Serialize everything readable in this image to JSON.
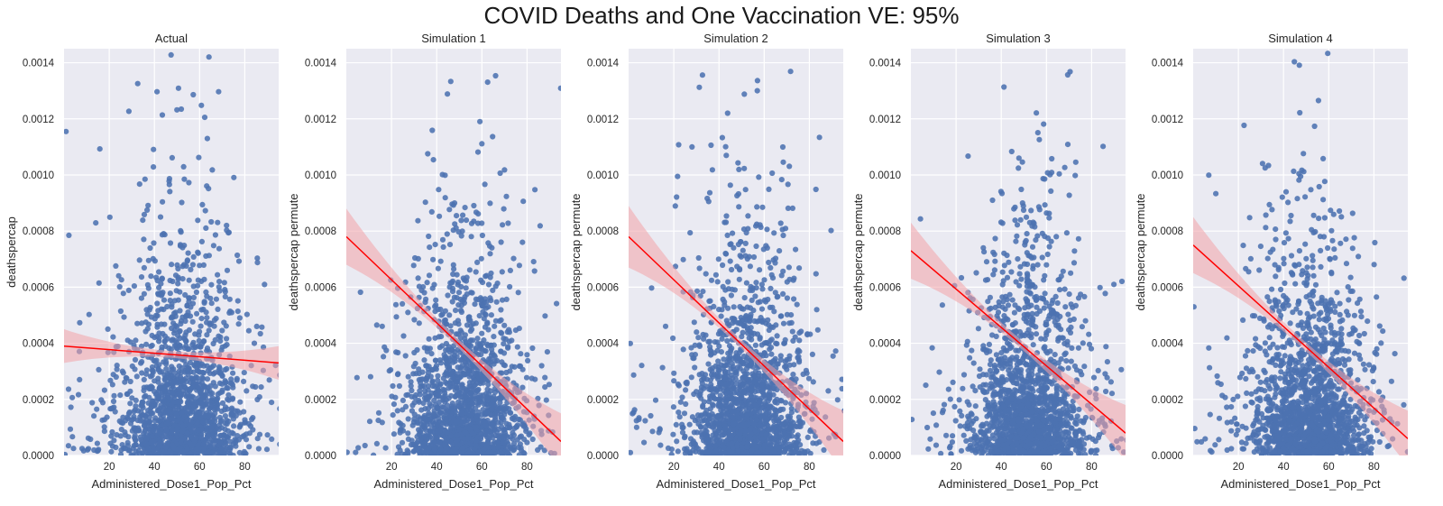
{
  "figure": {
    "title": "COVID Deaths and One Vaccination VE: 95%"
  },
  "colors": {
    "panel_bg": "#eaeaf2",
    "grid": "#ffffff",
    "points": "#4c72b0",
    "fit_line": "#ff0000",
    "ci_band": "#f2a3a8",
    "text": "#262626"
  },
  "chart_data": [
    {
      "type": "scatter",
      "title": "Actual",
      "xlabel": "Administered_Dose1_Pop_Pct",
      "ylabel": "deathspercap",
      "xlim": [
        0,
        95
      ],
      "ylim": [
        0.0,
        0.00145
      ],
      "xticks": [
        "20",
        "40",
        "60",
        "80"
      ],
      "yticks": [
        "0.0000",
        "0.0002",
        "0.0004",
        "0.0006",
        "0.0008",
        "0.0010",
        "0.0012",
        "0.0014"
      ],
      "point_cloud": {
        "n": 1700,
        "x_center": 52,
        "x_spread": 13,
        "y_scale": 0.00026,
        "y_cap": 0.0016,
        "outlier_frac": 0.06,
        "seed": 11
      },
      "regression": {
        "x0": 0,
        "y0": 0.00039,
        "x1": 95,
        "y1": 0.00033,
        "ci_half_width_ends": 6e-05,
        "ci_half_width_mid": 1.2e-05
      }
    },
    {
      "type": "scatter",
      "title": "Simulation 1",
      "xlabel": "Administered_Dose1_Pop_Pct",
      "ylabel": "deathspercap permute",
      "xlim": [
        0,
        95
      ],
      "ylim": [
        0.0,
        0.00145
      ],
      "xticks": [
        "20",
        "40",
        "60",
        "80"
      ],
      "yticks": [
        "0.0000",
        "0.0002",
        "0.0004",
        "0.0006",
        "0.0008",
        "0.0010",
        "0.0012",
        "0.0014"
      ],
      "point_cloud": {
        "n": 1700,
        "x_center": 52,
        "x_spread": 13,
        "y_scale": 0.00026,
        "y_cap": 0.0016,
        "outlier_frac": 0.05,
        "seed": 23
      },
      "regression": {
        "x0": 0,
        "y0": 0.00078,
        "x1": 95,
        "y1": 5e-05,
        "ci_half_width_ends": 0.0001,
        "ci_half_width_mid": 1.5e-05
      }
    },
    {
      "type": "scatter",
      "title": "Simulation 2",
      "xlabel": "Administered_Dose1_Pop_Pct",
      "ylabel": "deathspercap permute",
      "xlim": [
        0,
        95
      ],
      "ylim": [
        0.0,
        0.00145
      ],
      "xticks": [
        "20",
        "40",
        "60",
        "80"
      ],
      "yticks": [
        "0.0000",
        "0.0002",
        "0.0004",
        "0.0006",
        "0.0008",
        "0.0010",
        "0.0012",
        "0.0014"
      ],
      "point_cloud": {
        "n": 1700,
        "x_center": 52,
        "x_spread": 13,
        "y_scale": 0.00026,
        "y_cap": 0.0016,
        "outlier_frac": 0.05,
        "seed": 37
      },
      "regression": {
        "x0": 0,
        "y0": 0.00078,
        "x1": 95,
        "y1": 5e-05,
        "ci_half_width_ends": 0.00011,
        "ci_half_width_mid": 1.5e-05
      }
    },
    {
      "type": "scatter",
      "title": "Simulation 3",
      "xlabel": "Administered_Dose1_Pop_Pct",
      "ylabel": "deathspercap permute",
      "xlim": [
        0,
        95
      ],
      "ylim": [
        0.0,
        0.00145
      ],
      "xticks": [
        "20",
        "40",
        "60",
        "80"
      ],
      "yticks": [
        "0.0000",
        "0.0002",
        "0.0004",
        "0.0006",
        "0.0008",
        "0.0010",
        "0.0012",
        "0.0014"
      ],
      "point_cloud": {
        "n": 1700,
        "x_center": 52,
        "x_spread": 13,
        "y_scale": 0.00026,
        "y_cap": 0.0016,
        "outlier_frac": 0.05,
        "seed": 41
      },
      "regression": {
        "x0": 0,
        "y0": 0.00073,
        "x1": 95,
        "y1": 8e-05,
        "ci_half_width_ends": 0.0001,
        "ci_half_width_mid": 1.5e-05
      }
    },
    {
      "type": "scatter",
      "title": "Simulation 4",
      "xlabel": "Administered_Dose1_Pop_Pct",
      "ylabel": "deathspercap permute",
      "xlim": [
        0,
        95
      ],
      "ylim": [
        0.0,
        0.00145
      ],
      "xticks": [
        "20",
        "40",
        "60",
        "80"
      ],
      "yticks": [
        "0.0000",
        "0.0002",
        "0.0004",
        "0.0006",
        "0.0008",
        "0.0010",
        "0.0012",
        "0.0014"
      ],
      "point_cloud": {
        "n": 1700,
        "x_center": 52,
        "x_spread": 13,
        "y_scale": 0.00026,
        "y_cap": 0.0016,
        "outlier_frac": 0.05,
        "seed": 53
      },
      "regression": {
        "x0": 0,
        "y0": 0.00075,
        "x1": 95,
        "y1": 6e-05,
        "ci_half_width_ends": 0.0001,
        "ci_half_width_mid": 1.5e-05
      }
    }
  ]
}
